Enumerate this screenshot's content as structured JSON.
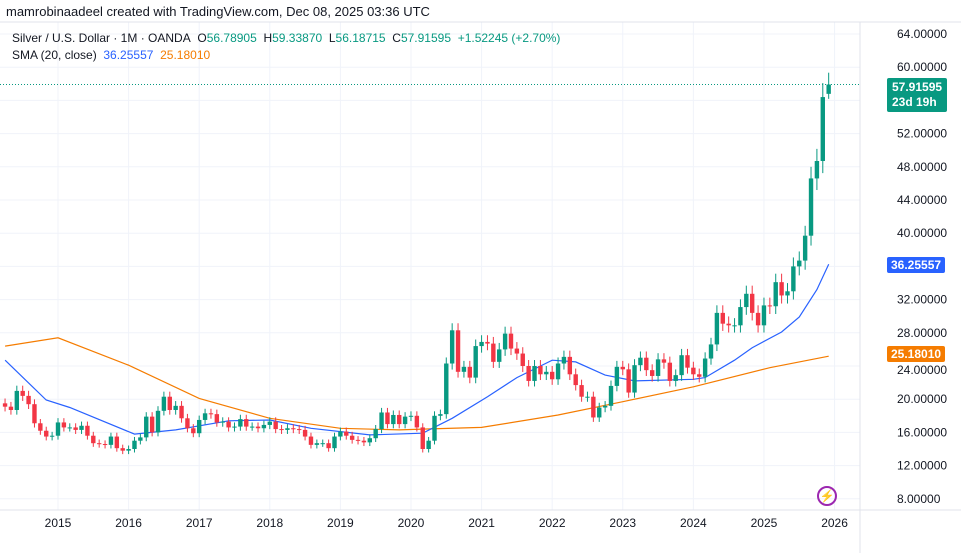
{
  "credit": "mamrobinaadeel created with TradingView.com, Dec 08, 2025 03:36 UTC",
  "legend": {
    "symbol": "Silver / U.S. Dollar · 1M · OANDA",
    "o_label": "O",
    "o": "56.78905",
    "h_label": "H",
    "h": "59.33870",
    "l_label": "L",
    "l": "56.18715",
    "c_label": "C",
    "c": "57.91595",
    "change": "+1.52245 (+2.70%)",
    "sma_label": "SMA (20, close)",
    "sma_blue": "36.25557",
    "sma_orange": "25.18010"
  },
  "price_label": {
    "price": "57.91595",
    "countdown": "23d 19h"
  },
  "colors": {
    "up": "#089981",
    "down": "#f23645",
    "sma_fast": "#2962ff",
    "sma_slow": "#f57c00",
    "grid": "#f0f3fa",
    "icon": "#9c27b0"
  },
  "icon": "tradingview-lightning-icon",
  "chart_data": {
    "type": "candlestick",
    "title": "Silver / U.S. Dollar · 1M · OANDA",
    "start_month": "2014-04",
    "closes": [
      19.1,
      18.7,
      21.0,
      20.4,
      19.4,
      17.1,
      16.2,
      15.5,
      15.6,
      17.2,
      16.6,
      16.6,
      16.3,
      16.8,
      15.6,
      14.7,
      14.6,
      14.5,
      15.5,
      14.1,
      13.8,
      14.0,
      15.0,
      15.4,
      17.9,
      16.0,
      18.6,
      20.3,
      18.7,
      19.2,
      17.7,
      16.5,
      15.9,
      17.5,
      18.3,
      18.2,
      17.2,
      17.3,
      16.6,
      16.7,
      17.6,
      16.7,
      16.7,
      16.5,
      16.9,
      17.3,
      16.4,
      16.3,
      16.5,
      16.4,
      16.3,
      15.5,
      14.5,
      14.7,
      14.7,
      14.1,
      15.5,
      16.1,
      15.6,
      15.1,
      15.0,
      14.8,
      15.3,
      16.4,
      18.4,
      17.0,
      18.1,
      17.0,
      17.9,
      18.0,
      16.6,
      14.0,
      15.0,
      18.0,
      18.2,
      24.3,
      28.3,
      23.3,
      23.9,
      22.6,
      26.4,
      26.9,
      26.7,
      24.5,
      26.0,
      27.9,
      26.1,
      25.5,
      24.0,
      22.2,
      24.0,
      23.0,
      23.3,
      22.4,
      24.3,
      25.1,
      23.0,
      21.7,
      20.3,
      20.3,
      17.8,
      19.0,
      19.2,
      21.6,
      23.9,
      23.6,
      20.8,
      24.1,
      25.0,
      23.5,
      22.8,
      24.8,
      24.4,
      22.2,
      22.9,
      25.3,
      23.8,
      23.0,
      22.7,
      24.9,
      26.6,
      30.4,
      29.1,
      28.9,
      28.9,
      31.1,
      32.7,
      30.4,
      28.9,
      31.3,
      31.2,
      34.1,
      32.5,
      33.0,
      36.0,
      36.7,
      39.7,
      46.6,
      48.7,
      56.4,
      57.91595
    ],
    "last_candle": {
      "open": 56.78905,
      "high": 59.3387,
      "low": 56.18715,
      "close": 57.91595
    },
    "sma_fast": [
      [
        "2014-04",
        24.7
      ],
      [
        "2014-11",
        19.9
      ],
      [
        "2015-03",
        19.0
      ],
      [
        "2016-02",
        15.8
      ],
      [
        "2016-09",
        16.3
      ],
      [
        "2017-06",
        17.4
      ],
      [
        "2018-01",
        17.5
      ],
      [
        "2018-08",
        16.5
      ],
      [
        "2019-06",
        15.7
      ],
      [
        "2020-03",
        15.9
      ],
      [
        "2020-08",
        17.7
      ],
      [
        "2021-02",
        20.3
      ],
      [
        "2021-07",
        22.6
      ],
      [
        "2022-01",
        24.7
      ],
      [
        "2022-05",
        24.5
      ],
      [
        "2022-10",
        22.9
      ],
      [
        "2023-03",
        22.2
      ],
      [
        "2024-01",
        22.4
      ],
      [
        "2024-03",
        22.6
      ],
      [
        "2024-08",
        24.7
      ],
      [
        "2024-11",
        26.2
      ],
      [
        "2025-04",
        28.1
      ],
      [
        "2025-07",
        29.9
      ],
      [
        "2025-10",
        33.2
      ],
      [
        "2025-12",
        36.25557
      ]
    ],
    "sma_slow": [
      [
        "2014-04",
        26.4
      ],
      [
        "2015-01",
        27.4
      ],
      [
        "2016-01",
        24.1
      ],
      [
        "2017-01",
        20.1
      ],
      [
        "2018-01",
        17.7
      ],
      [
        "2019-01",
        16.5
      ],
      [
        "2019-11",
        16.3
      ],
      [
        "2020-03",
        16.4
      ],
      [
        "2021-01",
        16.6
      ],
      [
        "2022-02",
        18.1
      ],
      [
        "2023-01",
        19.7
      ],
      [
        "2024-01",
        21.5
      ],
      [
        "2025-02",
        23.8
      ],
      [
        "2025-12",
        25.1801
      ]
    ],
    "y_ticks": [
      "64.00000",
      "60.00000",
      "52.00000",
      "48.00000",
      "44.00000",
      "40.00000",
      "32.00000",
      "28.00000",
      "24.00000",
      "20.00000",
      "16.00000",
      "12.00000",
      "8.00000"
    ],
    "x_ticks": [
      "2015",
      "2016",
      "2017",
      "2018",
      "2019",
      "2020",
      "2021",
      "2022",
      "2023",
      "2024",
      "2025",
      "2026"
    ],
    "ylim": [
      8,
      64
    ],
    "grid": true
  }
}
